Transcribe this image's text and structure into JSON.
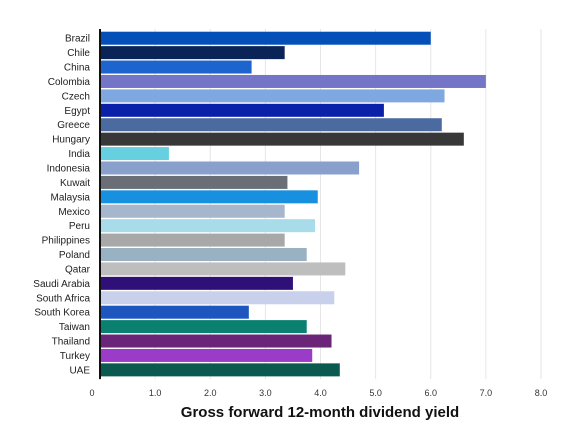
{
  "chart_data": {
    "type": "bar",
    "orientation": "horizontal",
    "title": "",
    "xlabel": "Gross forward 12-month dividend yield",
    "ylabel": "",
    "xlim": [
      0,
      8.0
    ],
    "grid": true,
    "ticks": [
      "0",
      "1.0",
      "2.0",
      "3.0",
      "4.0",
      "5.0",
      "6.0",
      "7.0",
      "8.0"
    ],
    "categories": [
      "Brazil",
      "Chile",
      "China",
      "Colombia",
      "Czech",
      "Egypt",
      "Greece",
      "Hungary",
      "India",
      "Indonesia",
      "Kuwait",
      "Malaysia",
      "Mexico",
      "Peru",
      "Philippines",
      "Poland",
      "Qatar",
      "Saudi Arabia",
      "South Africa",
      "South Korea",
      "Taiwan",
      "Thailand",
      "Turkey",
      "UAE"
    ],
    "values": [
      6.0,
      3.35,
      2.75,
      7.0,
      6.25,
      5.15,
      6.2,
      6.6,
      1.25,
      4.7,
      3.4,
      3.95,
      3.35,
      3.9,
      3.35,
      3.75,
      4.45,
      3.5,
      4.25,
      2.7,
      3.75,
      4.2,
      3.85,
      4.35
    ],
    "colors": [
      "#0550b8",
      "#0b2458",
      "#1d64cf",
      "#7575c8",
      "#80a8e0",
      "#0a20a8",
      "#4a6aa0",
      "#383838",
      "#66d0e0",
      "#8aa0cc",
      "#6a6e76",
      "#1890e0",
      "#a6b6cc",
      "#a8dcea",
      "#a8a8a8",
      "#98b2c4",
      "#bebebe",
      "#2e1078",
      "#c8d0ec",
      "#1e56c0",
      "#0a8070",
      "#6a2478",
      "#9a3cc8",
      "#0a5a50"
    ]
  }
}
